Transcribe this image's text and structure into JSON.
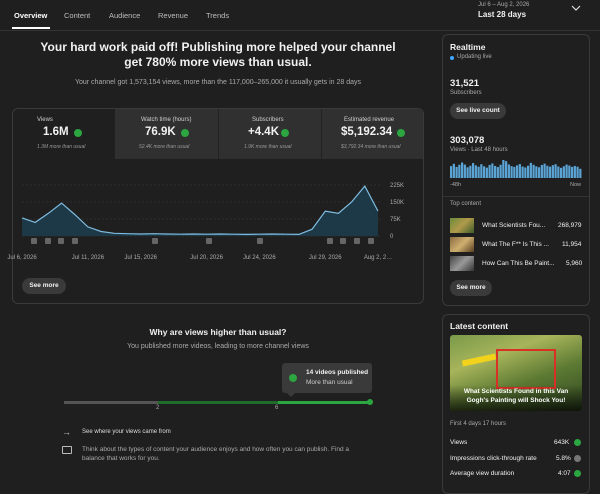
{
  "nav": {
    "tabs": [
      "Overview",
      "Content",
      "Audience",
      "Revenue",
      "Trends"
    ],
    "date_range": "Jul 6 – Aug 2, 2026",
    "period": "Last 28 days"
  },
  "summary": {
    "headline": "Your hard work paid off! Publishing more helped your channel get 780% more views than usual.",
    "subline": "Your channel got 1,573,154 views, more than the 117,000–265,000 it usually gets in 28 days"
  },
  "metrics": [
    {
      "label": "Views",
      "value": "1.6M",
      "note": "1.3M more than usual"
    },
    {
      "label": "Watch time (hours)",
      "value": "76.9K",
      "note": "52.4K more than usual"
    },
    {
      "label": "Subscribers",
      "value": "+4.4K",
      "note": "1.9K more than usual"
    },
    {
      "label": "Estimated revenue",
      "value": "$5,192.34",
      "note": "$3,792.34 more than usual"
    }
  ],
  "views_chart": {
    "type": "line",
    "x": [
      "Jul 6, 2026",
      null,
      null,
      null,
      null,
      "Jul 11, 2026",
      null,
      null,
      null,
      "Jul 15, 2026",
      null,
      null,
      null,
      null,
      "Jul 20, 2026",
      null,
      null,
      null,
      "Jul 24, 2026",
      null,
      null,
      null,
      null,
      "Jul 29, 2026",
      null,
      null,
      null,
      "Aug 2, 2…"
    ],
    "values": [
      80000,
      60000,
      100000,
      145000,
      95000,
      40000,
      20000,
      12000,
      10000,
      9000,
      10000,
      9000,
      8000,
      9000,
      8000,
      9000,
      8000,
      7000,
      8000,
      9000,
      8000,
      7000,
      30000,
      110000,
      100000,
      150000,
      220000,
      110000
    ],
    "color": "#7fbde0",
    "ylim": [
      0,
      225000
    ],
    "yticks": [
      0,
      {
        "value": 75000,
        "label": "75K"
      },
      {
        "value": 150000,
        "label": "150K"
      },
      {
        "value": 225000,
        "label": "225K"
      }
    ],
    "grid": true
  },
  "see_more": "See more",
  "insight": {
    "title": "Why are views higher than usual?",
    "subtitle": "You published more videos, leading to more channel views",
    "callout_title": "14 videos published",
    "callout_note": "More than usual",
    "scale_labels": [
      "2",
      "6"
    ],
    "tips": [
      "See where your views came from",
      "Think about the types of content your audience enjoys and how often you can publish. Find a balance that works for you."
    ]
  },
  "realtime": {
    "title": "Realtime",
    "status": "Updating live",
    "subscribers": "31,521",
    "subscribers_label": "Subscribers",
    "live_button": "See live count",
    "views": "303,078",
    "views_label": "Views · Last 48 hours",
    "hourly_chart": {
      "type": "bar",
      "color": "#5ba4d6",
      "values": [
        6200,
        7400,
        5800,
        6900,
        8100,
        7000,
        5600,
        6400,
        7800,
        6600,
        5900,
        7200,
        6100,
        5400,
        6800,
        7600,
        6300,
        5700,
        6900,
        9400,
        8800,
        7100,
        6200,
        5800,
        6600,
        7300,
        6000,
        5500,
        6400,
        7900,
        6900,
        6100,
        5600,
        6800,
        7500,
        6400,
        5900,
        6700,
        7200,
        6000,
        5300,
        6100,
        7000,
        6500,
        5800,
        6300,
        5900,
        4800
      ]
    },
    "axis_start": "-48h",
    "axis_end": "Now",
    "top_content_label": "Top content",
    "top_content": [
      {
        "title": "What Scientists Fou...",
        "views": "268,979"
      },
      {
        "title": "What The F** Is This ...",
        "views": "11,954"
      },
      {
        "title": "How Can This Be Paint...",
        "views": "5,960"
      }
    ],
    "see_more": "See more"
  },
  "latest": {
    "title": "Latest content",
    "video_title": "What Scientists Found in this Van Gogh's Painting will Shock You!",
    "period": "First 4 days 17 hours",
    "stats": [
      {
        "label": "Views",
        "value": "643K"
      },
      {
        "label": "Impressions click-through rate",
        "value": "5.8%"
      },
      {
        "label": "Average view duration",
        "value": "4:07"
      }
    ]
  }
}
